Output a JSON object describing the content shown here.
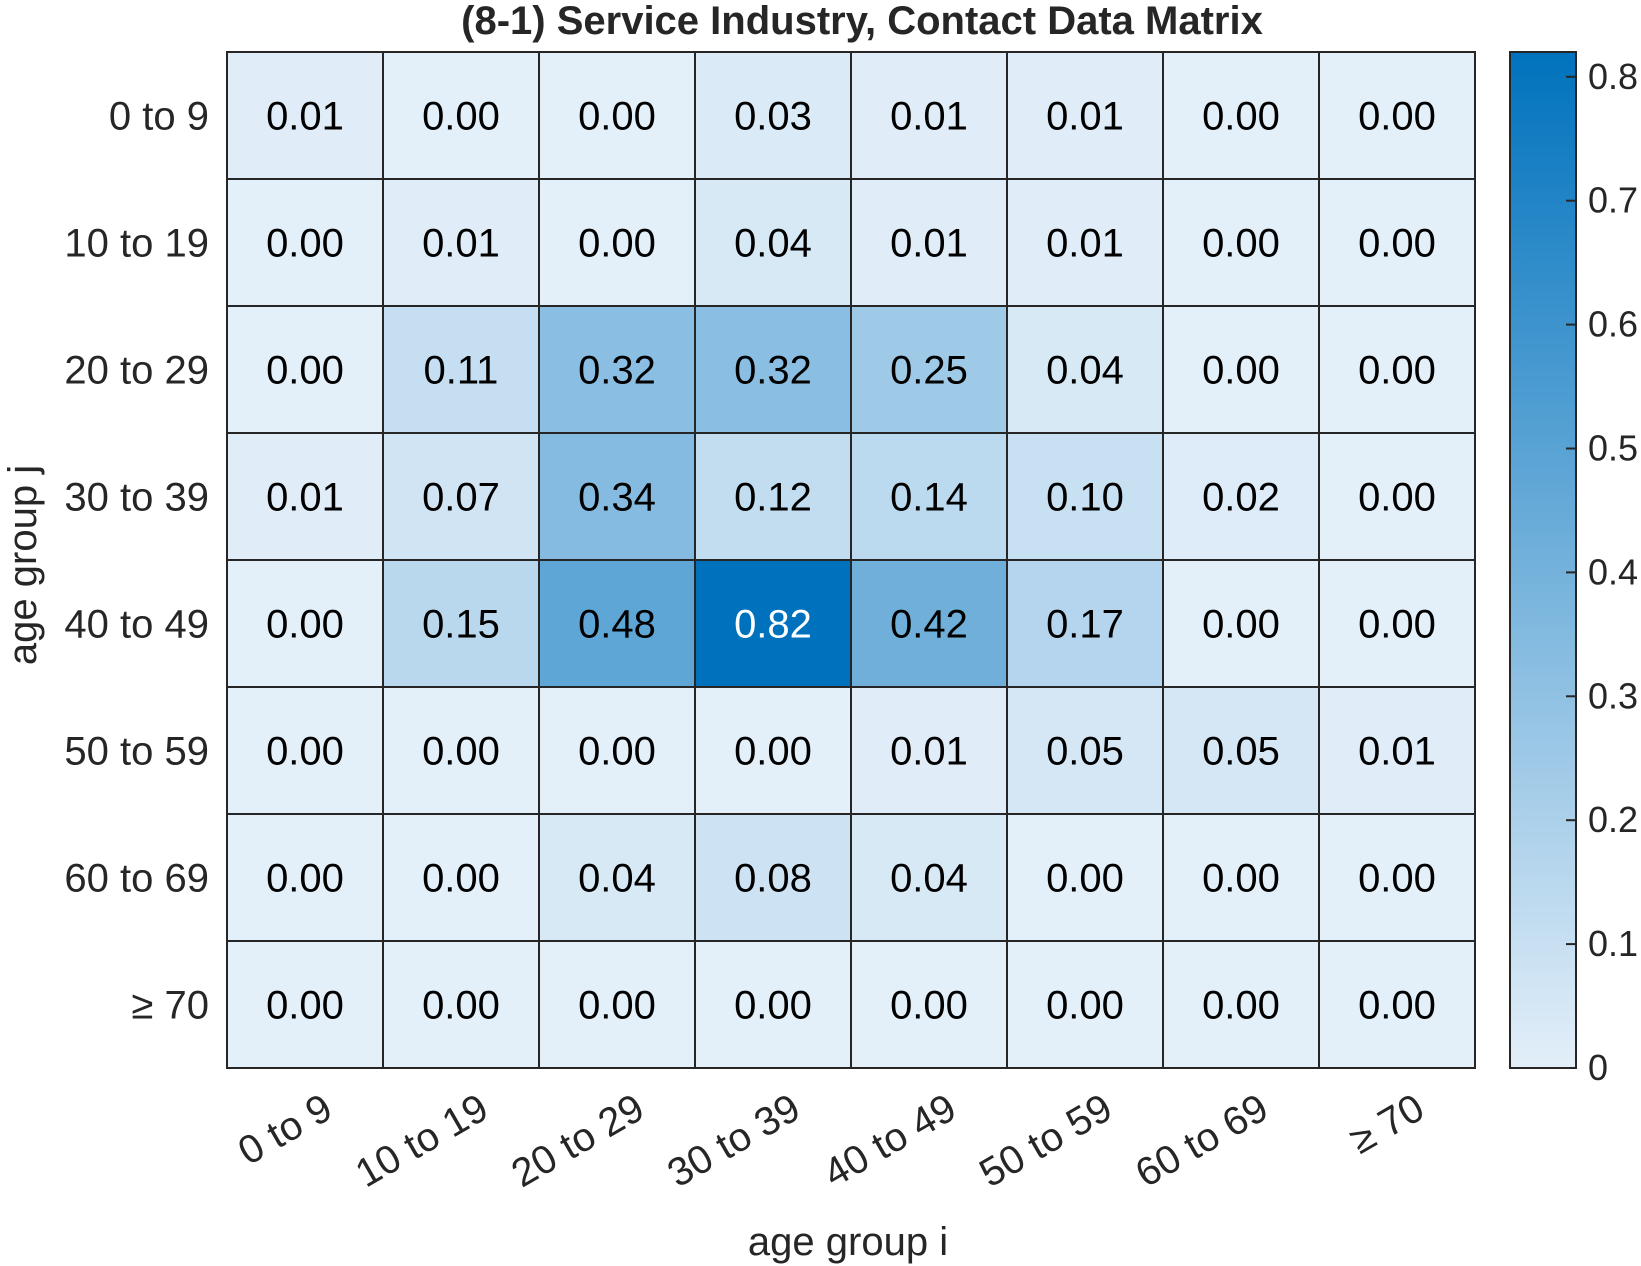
{
  "chart_data": {
    "type": "heatmap",
    "title": "(8-1) Service Industry, Contact Data Matrix",
    "xlabel": "age group i",
    "ylabel": "age group j",
    "x_categories": [
      "0 to 9",
      "10 to 19",
      "20 to 29",
      "30 to 39",
      "40 to 49",
      "50 to 59",
      "60 to 69",
      "≥ 70"
    ],
    "y_categories": [
      "0 to 9",
      "10 to 19",
      "20 to 29",
      "30 to 39",
      "40 to 49",
      "50 to 59",
      "60 to 69",
      "≥ 70"
    ],
    "values": [
      [
        0.01,
        0.0,
        0.0,
        0.03,
        0.01,
        0.01,
        0.0,
        0.0
      ],
      [
        0.0,
        0.01,
        0.0,
        0.04,
        0.01,
        0.01,
        0.0,
        0.0
      ],
      [
        0.0,
        0.11,
        0.32,
        0.32,
        0.25,
        0.04,
        0.0,
        0.0
      ],
      [
        0.01,
        0.07,
        0.34,
        0.12,
        0.14,
        0.1,
        0.02,
        0.0
      ],
      [
        0.0,
        0.15,
        0.48,
        0.82,
        0.42,
        0.17,
        0.0,
        0.0
      ],
      [
        0.0,
        0.0,
        0.0,
        0.0,
        0.01,
        0.05,
        0.05,
        0.01
      ],
      [
        0.0,
        0.0,
        0.04,
        0.08,
        0.04,
        0.0,
        0.0,
        0.0
      ],
      [
        0.0,
        0.0,
        0.0,
        0.0,
        0.0,
        0.0,
        0.0,
        0.0
      ]
    ],
    "colorbar": {
      "range": [
        0,
        0.82
      ],
      "ticks": [
        0,
        0.1,
        0.2,
        0.3,
        0.4,
        0.5,
        0.6,
        0.7,
        0.8
      ],
      "tick_labels": [
        "0",
        "0.1",
        "0.2",
        "0.3",
        "0.4",
        "0.5",
        "0.6",
        "0.7",
        "0.8"
      ],
      "color_low": "#e3eff9",
      "color_high": "#0072bd"
    },
    "label_color_dark": "#000000",
    "label_color_light": "#ffffff",
    "grid_color": "#262626"
  }
}
